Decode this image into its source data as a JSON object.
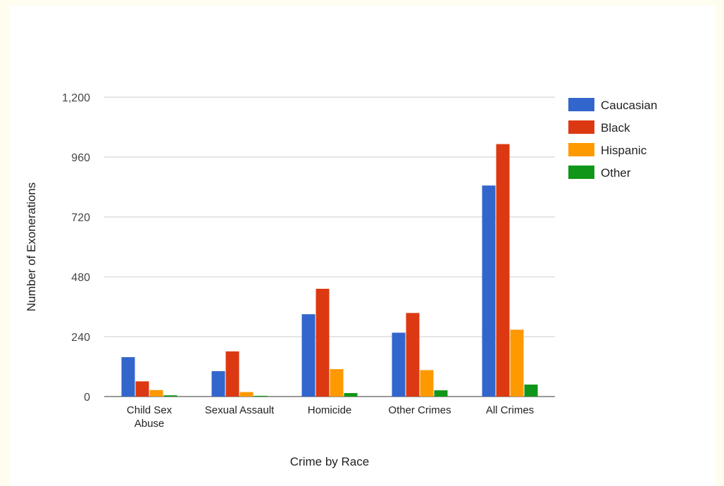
{
  "chart_data": {
    "type": "bar",
    "xlabel": "Crime by Race",
    "ylabel": "Number of Exonerations",
    "ylim": [
      0,
      1200
    ],
    "yticks": [
      0,
      240,
      480,
      720,
      960,
      1200
    ],
    "ytick_labels": [
      "0",
      "240",
      "480",
      "720",
      "960",
      "1,200"
    ],
    "categories": [
      [
        "Child Sex",
        "Abuse"
      ],
      [
        "Sexual Assault"
      ],
      [
        "Homicide"
      ],
      [
        "Other Crimes"
      ],
      [
        "All Crimes"
      ]
    ],
    "series": [
      {
        "name": "Caucasian",
        "color": "#3366cc",
        "values": [
          158,
          102,
          330,
          256,
          846
        ]
      },
      {
        "name": "Black",
        "color": "#dc3912",
        "values": [
          61,
          181,
          432,
          335,
          1012
        ]
      },
      {
        "name": "Hispanic",
        "color": "#ff9900",
        "values": [
          26,
          18,
          110,
          106,
          268
        ]
      },
      {
        "name": "Other",
        "color": "#109618",
        "values": [
          5,
          3,
          14,
          25,
          48
        ]
      }
    ],
    "grid": true,
    "legend_position": "right"
  }
}
